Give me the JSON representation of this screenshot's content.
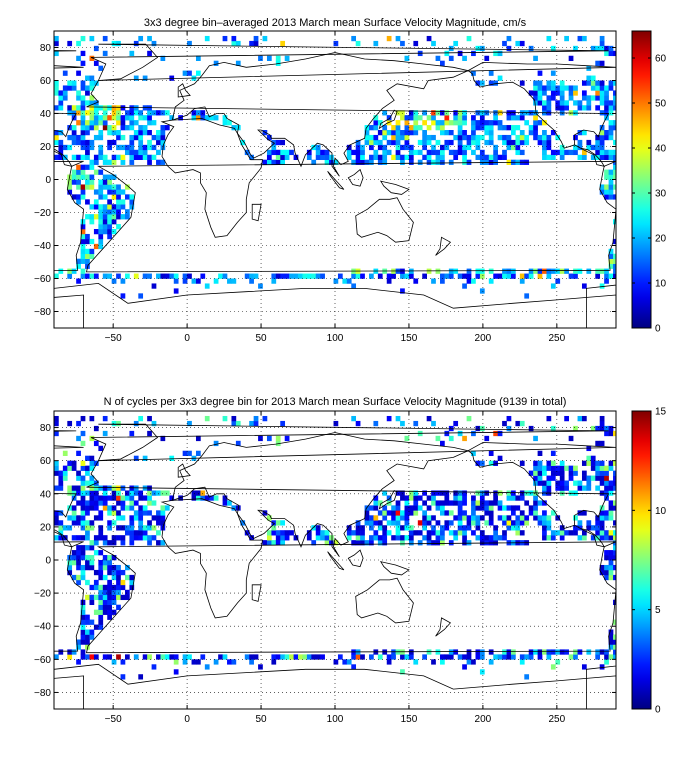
{
  "chart_data": [
    {
      "type": "heatmap",
      "title": "3x3 degree bin–averaged 2013 March mean Surface Velocity Magnitude, cm/s",
      "xlabel": "",
      "ylabel": "",
      "xlim": [
        -90,
        290
      ],
      "ylim": [
        -90,
        90
      ],
      "x_ticks": [
        -50,
        0,
        50,
        100,
        150,
        200,
        250
      ],
      "y_ticks": [
        80,
        60,
        40,
        20,
        0,
        -20,
        -40,
        -60,
        -80
      ],
      "bin_size_deg": 3,
      "grid": true,
      "colormap": "jet",
      "colorbar": {
        "min": 0,
        "max": 66,
        "ticks": [
          0,
          10,
          20,
          30,
          40,
          50,
          60
        ],
        "placement": "right"
      },
      "field": "velocity",
      "bin_count_approx": 2600
    },
    {
      "type": "heatmap",
      "title": "N of cycles per 3x3 degree bin for 2013 March mean Surface Velocity Magnitude (9139 in total)",
      "xlabel": "",
      "ylabel": "",
      "xlim": [
        -90,
        290
      ],
      "ylim": [
        -90,
        90
      ],
      "x_ticks": [
        -50,
        0,
        50,
        100,
        150,
        200,
        250
      ],
      "y_ticks": [
        80,
        60,
        40,
        20,
        0,
        -20,
        -40,
        -60,
        -80
      ],
      "bin_size_deg": 3,
      "grid": true,
      "colormap": "jet",
      "colorbar": {
        "min": 0,
        "max": 15,
        "ticks": [
          0,
          5,
          10,
          15
        ],
        "placement": "right"
      },
      "field": "count",
      "total_cycles": 9139
    }
  ]
}
